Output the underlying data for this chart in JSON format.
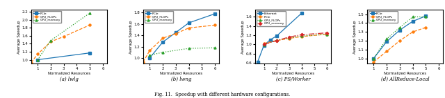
{
  "subplot_a": {
    "title_prefix": "(a) ",
    "title_italic": "lwlg",
    "xlabel": "Normalized Resources",
    "ylabel": "Average Speedup",
    "ylim": [
      0.9,
      2.25
    ],
    "yticks": [
      1.0,
      1.2,
      1.4,
      1.6,
      1.8,
      2.0,
      2.2
    ],
    "xlim": [
      0.5,
      6.3
    ],
    "xticks": [
      1,
      2,
      3,
      4,
      5,
      6
    ],
    "series": {
      "PCIe": {
        "x": [
          1,
          5
        ],
        "y": [
          1.0,
          1.17
        ],
        "color": "#1f77b4",
        "ls": "-",
        "marker": "s"
      },
      "GPU_FLOPs": {
        "x": [
          0.5,
          1,
          2,
          3,
          5
        ],
        "y": [
          0.93,
          1.14,
          1.45,
          1.58,
          1.87
        ],
        "color": "#ff7f0e",
        "ls": "--",
        "marker": "o"
      },
      "GPU_memory": {
        "x": [
          1,
          2,
          5
        ],
        "y": [
          1.0,
          1.48,
          2.17
        ],
        "color": "#2ca02c",
        "ls": ":",
        "marker": "^"
      }
    }
  },
  "subplot_b": {
    "title_prefix": "(b) ",
    "title_italic": "lwng",
    "xlabel": "Normalized Resources",
    "ylabel": "Average Speedup",
    "ylim": [
      0.9,
      1.85
    ],
    "yticks": [
      1.0,
      1.2,
      1.4,
      1.6,
      1.8
    ],
    "xlim": [
      0.5,
      6.3
    ],
    "xticks": [
      1,
      2,
      3,
      4,
      5,
      6
    ],
    "series": {
      "PCIe": {
        "x": [
          1,
          2,
          3,
          4,
          6
        ],
        "y": [
          1.0,
          1.28,
          1.45,
          1.62,
          1.78
        ],
        "color": "#1f77b4",
        "ls": "-",
        "marker": "s"
      },
      "GPU_FLOPs": {
        "x": [
          0.5,
          1,
          2,
          3,
          4,
          6
        ],
        "y": [
          0.93,
          1.13,
          1.35,
          1.43,
          1.53,
          1.58
        ],
        "color": "#ff7f0e",
        "ls": "--",
        "marker": "o"
      },
      "GPU_memory": {
        "x": [
          1,
          2,
          4,
          6
        ],
        "y": [
          1.05,
          1.1,
          1.17,
          1.18
        ],
        "color": "#2ca02c",
        "ls": ":",
        "marker": "^"
      }
    }
  },
  "subplot_c": {
    "title_prefix": "(c) ",
    "title_italic": "PS/Worker",
    "xlabel": "Normalized Resources",
    "ylabel": "Average Speedup",
    "ylim": [
      0.58,
      1.75
    ],
    "yticks": [
      0.6,
      0.8,
      1.0,
      1.2,
      1.4,
      1.6
    ],
    "xlim": [
      0.3,
      6.3
    ],
    "xticks": [
      1,
      2,
      3,
      4,
      5,
      6
    ],
    "series": {
      "Ethernet": {
        "x": [
          0.5,
          1,
          1.5,
          2,
          4
        ],
        "y": [
          0.62,
          0.98,
          1.1,
          1.18,
          1.68
        ],
        "color": "#1f77b4",
        "ls": "-",
        "marker": "s"
      },
      "PCIe": {
        "x": [
          1,
          2,
          3,
          4,
          6
        ],
        "y": [
          1.02,
          1.08,
          1.13,
          1.17,
          1.22
        ],
        "color": "#ff7f0e",
        "ls": "--",
        "marker": "o"
      },
      "GPU_FLOPs": {
        "x": [
          1,
          2,
          3,
          4,
          6
        ],
        "y": [
          0.99,
          1.09,
          1.14,
          1.18,
          1.22
        ],
        "color": "#2ca02c",
        "ls": ":",
        "marker": "^"
      },
      "GPU_memory": {
        "x": [
          1,
          2,
          3,
          4,
          6
        ],
        "y": [
          1.0,
          1.08,
          1.16,
          1.21,
          1.25
        ],
        "color": "#d62728",
        "ls": "-.",
        "marker": "D"
      }
    }
  },
  "subplot_d": {
    "title_prefix": "(d) ",
    "title_italic": "AllReduce-Local",
    "xlabel": "Normalized Resources",
    "ylabel": "Average Speedup",
    "ylim": [
      0.94,
      1.55
    ],
    "yticks": [
      1.0,
      1.1,
      1.2,
      1.3,
      1.4,
      1.5
    ],
    "xlim": [
      0.5,
      6.3
    ],
    "xticks": [
      1,
      2,
      3,
      4,
      5,
      6
    ],
    "series": {
      "PCIe": {
        "x": [
          1,
          2,
          3,
          4,
          5
        ],
        "y": [
          1.0,
          1.19,
          1.32,
          1.42,
          1.48
        ],
        "color": "#1f77b4",
        "ls": "-",
        "marker": "s"
      },
      "GPU_FLOPs": {
        "x": [
          1,
          2,
          3,
          4,
          5
        ],
        "y": [
          0.96,
          1.08,
          1.2,
          1.3,
          1.35
        ],
        "color": "#ff7f0e",
        "ls": "--",
        "marker": "o"
      },
      "GPU_memory": {
        "x": [
          1,
          2,
          3,
          4,
          5
        ],
        "y": [
          1.0,
          1.22,
          1.35,
          1.47,
          1.47
        ],
        "color": "#2ca02c",
        "ls": ":",
        "marker": "^"
      }
    }
  },
  "fig_caption": "Fig. 11.  Speedup with different hardware configurations.",
  "figsize": [
    6.4,
    1.42
  ],
  "dpi": 100
}
